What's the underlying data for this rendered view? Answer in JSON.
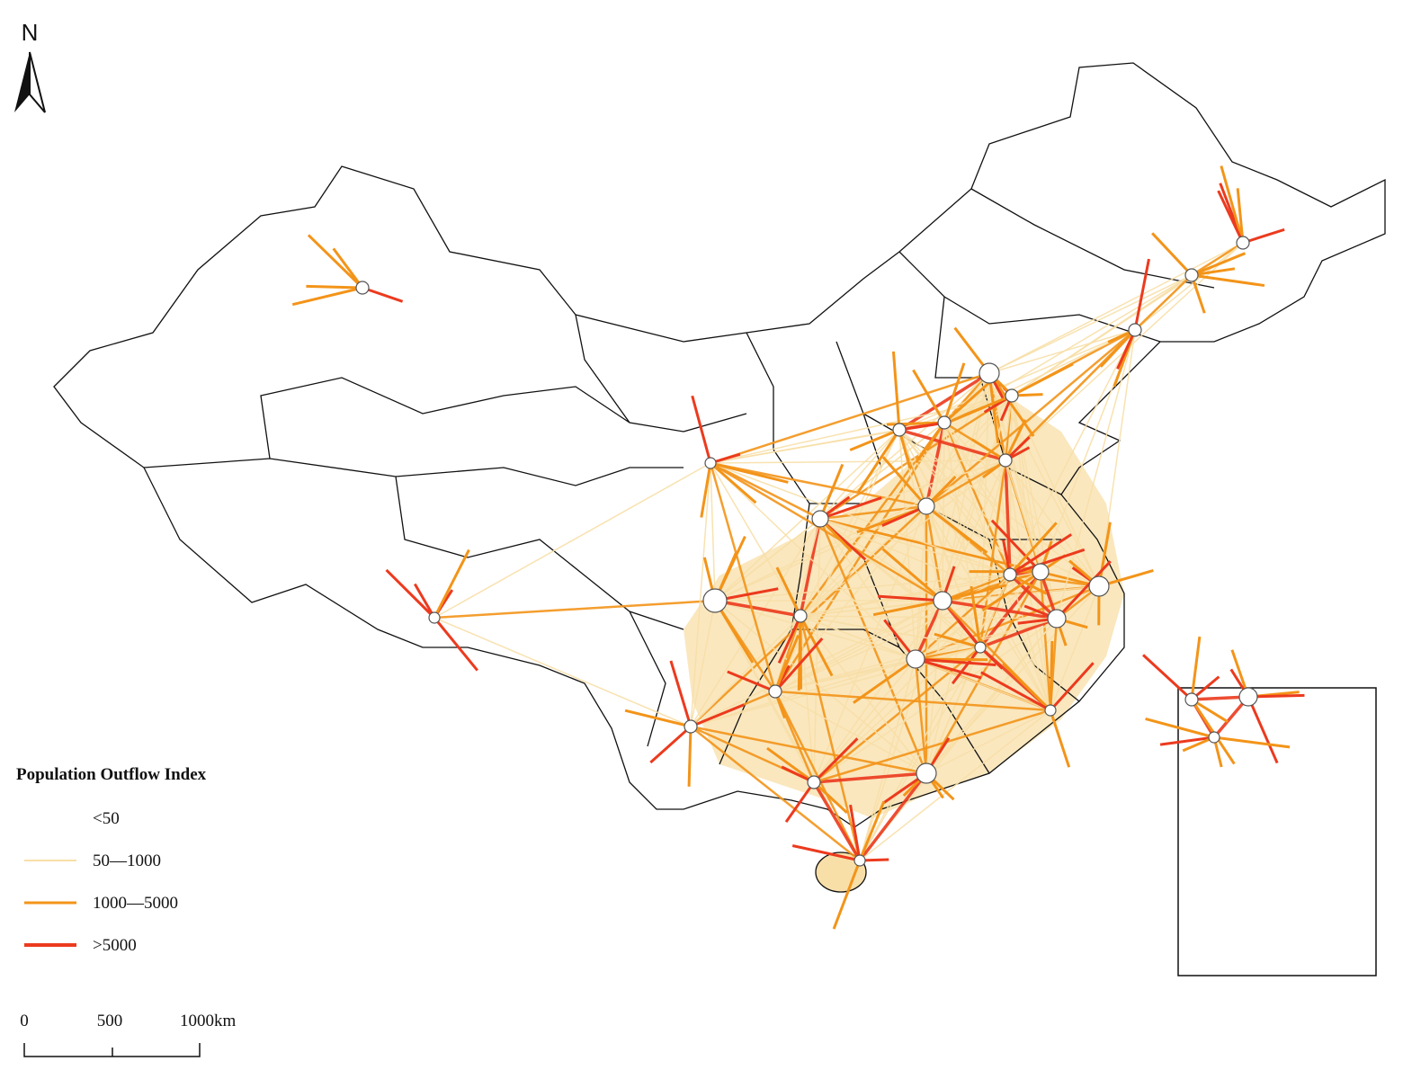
{
  "north_arrow": {
    "label": "N"
  },
  "legend": {
    "title": "Population Outflow Index",
    "items": [
      {
        "label": "<50"
      },
      {
        "label": "50—1000",
        "color": "#f8dfa8"
      },
      {
        "label": "1000—5000",
        "color": "#f39419"
      },
      {
        "label": ">5000",
        "color": "#ec3a1e"
      }
    ]
  },
  "scale_bar": {
    "labels": [
      "0",
      "500",
      "1000km"
    ]
  }
}
